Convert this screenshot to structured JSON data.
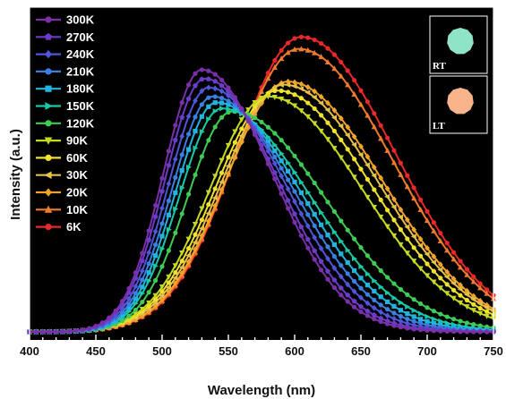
{
  "chart_data": {
    "type": "line",
    "xlabel": "Wavelength (nm)",
    "ylabel": "Intensity (a.u.)",
    "xlim": [
      400,
      750
    ],
    "ylim": [
      0,
      1.12
    ],
    "xticks": [
      "400",
      "450",
      "500",
      "550",
      "600",
      "650",
      "700",
      "750"
    ],
    "yticks_shown": false,
    "background": "#000000",
    "legend_placement": "top-left",
    "series": [
      {
        "name": "300K",
        "color": "#7b2fa8",
        "marker": "circle",
        "peak": 530,
        "height": 0.91,
        "sl": 29,
        "sr": 53
      },
      {
        "name": "270K",
        "color": "#6a3cc8",
        "marker": "pentagon",
        "peak": 532,
        "height": 0.88,
        "sl": 29.5,
        "sr": 55
      },
      {
        "name": "240K",
        "color": "#5056d8",
        "marker": "diamond",
        "peak": 535,
        "height": 0.85,
        "sl": 30,
        "sr": 58
      },
      {
        "name": "210K",
        "color": "#3a80e0",
        "marker": "circle",
        "peak": 538,
        "height": 0.82,
        "sl": 30.5,
        "sr": 61
      },
      {
        "name": "180K",
        "color": "#22b4de",
        "marker": "square",
        "peak": 541,
        "height": 0.8,
        "sl": 31,
        "sr": 64
      },
      {
        "name": "150K",
        "color": "#19c9a6",
        "marker": "triangle-right",
        "peak": 545,
        "height": 0.78,
        "sl": 32,
        "sr": 67
      },
      {
        "name": "120K",
        "color": "#3fcc55",
        "marker": "circle",
        "peak": 553,
        "height": 0.77,
        "sl": 34,
        "sr": 70
      },
      {
        "name": "90K",
        "color": "#c7da22",
        "marker": "triangle-down",
        "peak": 580,
        "height": 0.82,
        "sl": 44,
        "sr": 71
      },
      {
        "name": "60K",
        "color": "#f0e22c",
        "marker": "circle",
        "peak": 587,
        "height": 0.84,
        "sl": 46,
        "sr": 71
      },
      {
        "name": "30K",
        "color": "#e6c04a",
        "marker": "triangle-left",
        "peak": 592,
        "height": 0.86,
        "sl": 47,
        "sr": 71
      },
      {
        "name": "20K",
        "color": "#f2a42a",
        "marker": "diamond",
        "peak": 595,
        "height": 0.87,
        "sl": 47,
        "sr": 71
      },
      {
        "name": "10K",
        "color": "#f07a2e",
        "marker": "triangle-up",
        "peak": 603,
        "height": 0.98,
        "sl": 49,
        "sr": 71
      },
      {
        "name": "6K",
        "color": "#e8282a",
        "marker": "circle",
        "peak": 605,
        "height": 1.02,
        "sl": 49,
        "sr": 71
      }
    ],
    "baseline": 0.03,
    "insets": [
      {
        "label": "RT",
        "glow_color": "#8fe3c6"
      },
      {
        "label": "LT",
        "glow_color": "#f7b48a"
      }
    ]
  }
}
